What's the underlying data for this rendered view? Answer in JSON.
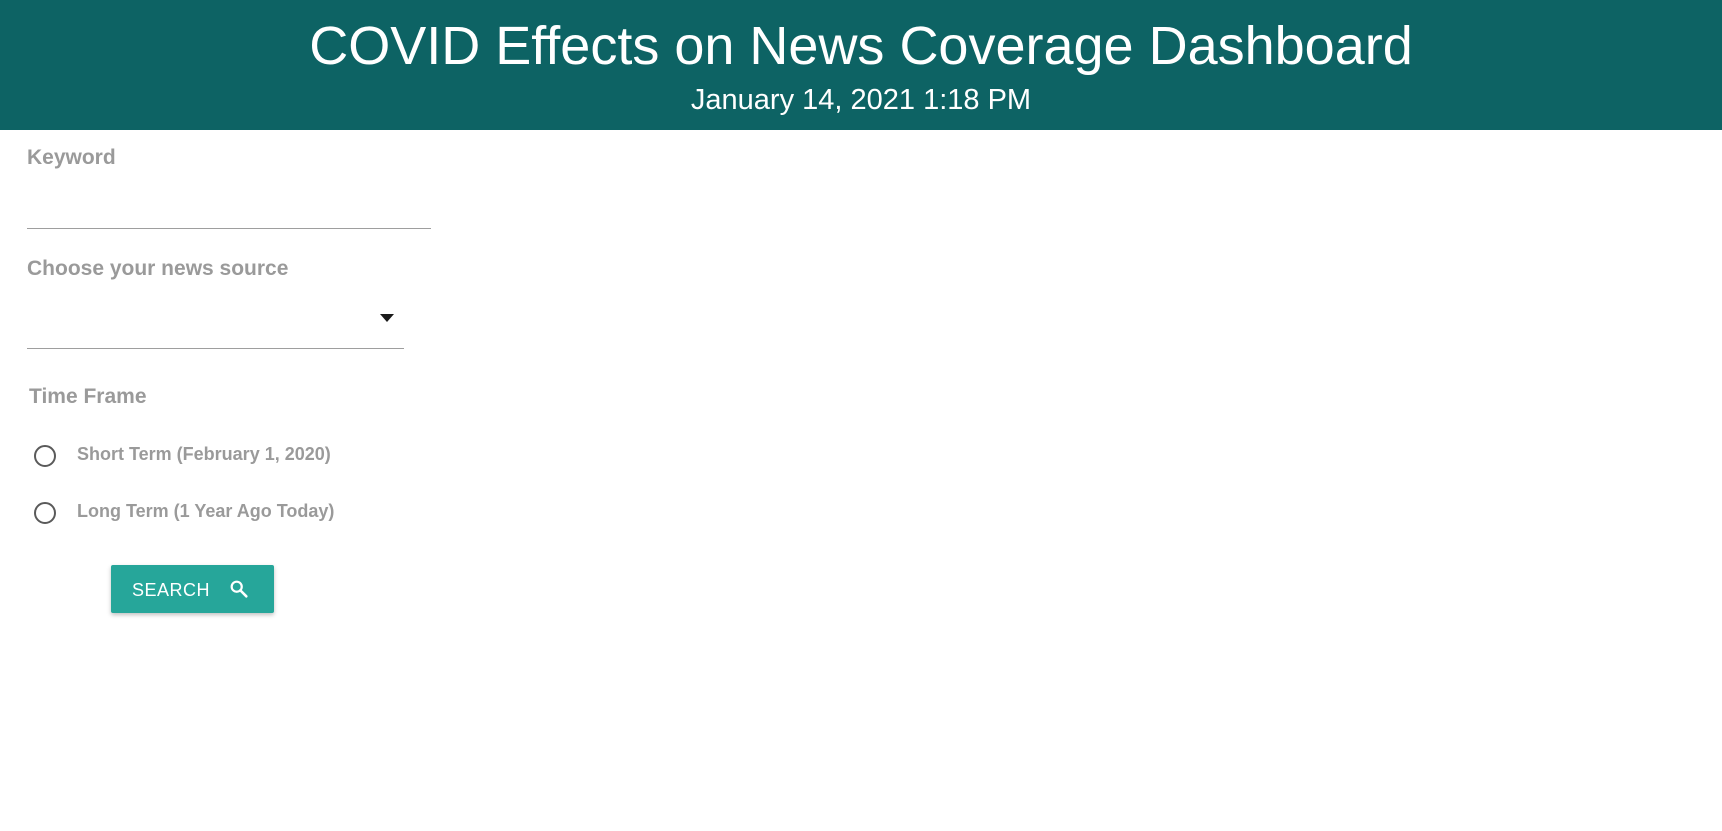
{
  "header": {
    "title": "COVID Effects on News Coverage Dashboard",
    "datetime": "January 14, 2021 1:18 PM"
  },
  "form": {
    "keyword": {
      "label": "Keyword",
      "value": "",
      "placeholder": ""
    },
    "news_source": {
      "label": "Choose your news source",
      "selected": ""
    },
    "time_frame": {
      "label": "Time Frame",
      "options": [
        {
          "label": "Short Term (February 1, 2020)",
          "selected": false
        },
        {
          "label": "Long Term (1 Year Ago Today)",
          "selected": false
        }
      ]
    },
    "search_button": {
      "label": "SEARCH",
      "icon": "search-icon"
    }
  },
  "colors": {
    "header_bg": "#0d6364",
    "button_bg": "#26a69a",
    "label_text": "#9a9a9a"
  }
}
